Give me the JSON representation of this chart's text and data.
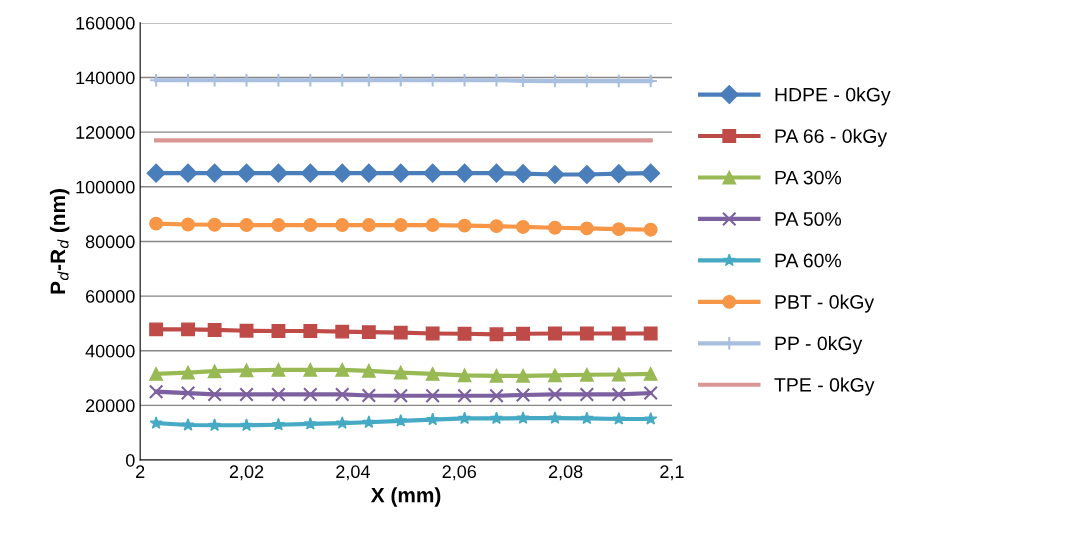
{
  "chart_data": {
    "type": "line",
    "xlabel": "X (mm)",
    "ylabel": "P$_{d}$-R$_{d}$ (nm)",
    "x": [
      2.003,
      2.009,
      2.014,
      2.02,
      2.026,
      2.032,
      2.038,
      2.043,
      2.049,
      2.055,
      2.061,
      2.067,
      2.072,
      2.078,
      2.084,
      2.09,
      2.096
    ],
    "xlim": [
      2,
      2.1
    ],
    "xticks": [
      {
        "value": 2,
        "label": "2"
      },
      {
        "value": 2.02,
        "label": "2,02"
      },
      {
        "value": 2.04,
        "label": "2,04"
      },
      {
        "value": 2.06,
        "label": "2,06"
      },
      {
        "value": 2.08,
        "label": "2,08"
      },
      {
        "value": 2.1,
        "label": "2,1"
      }
    ],
    "ylim": [
      0,
      160000
    ],
    "yticks": [
      0,
      20000,
      40000,
      60000,
      80000,
      100000,
      120000,
      140000,
      160000
    ],
    "grid": "y",
    "legend": "right",
    "series": [
      {
        "name": "HDPE - 0kGy",
        "color": "#4a7ebb",
        "marker": "diamond",
        "values": [
          105000,
          105000,
          105000,
          105000,
          105000,
          105000,
          105000,
          105000,
          105000,
          105000,
          105000,
          105000,
          104800,
          104500,
          104500,
          104800,
          105000
        ]
      },
      {
        "name": "PA 66 - 0kGy",
        "color": "#be4b48",
        "marker": "square",
        "values": [
          47800,
          47800,
          47600,
          47300,
          47200,
          47200,
          47000,
          46800,
          46600,
          46300,
          46200,
          46000,
          46200,
          46300,
          46300,
          46300,
          46300
        ]
      },
      {
        "name": "PA 30%",
        "color": "#98b954",
        "marker": "triangle",
        "values": [
          31500,
          32000,
          32500,
          32800,
          33000,
          33000,
          33000,
          32600,
          32000,
          31500,
          31000,
          30800,
          30800,
          31000,
          31200,
          31300,
          31500
        ]
      },
      {
        "name": "PA 50%",
        "color": "#7d60a0",
        "marker": "cross",
        "values": [
          25000,
          24500,
          24000,
          24000,
          24000,
          24000,
          24000,
          23600,
          23500,
          23500,
          23500,
          23500,
          23800,
          24000,
          24000,
          24000,
          24500
        ]
      },
      {
        "name": "PA 60%",
        "color": "#46aac5",
        "marker": "star",
        "values": [
          13500,
          12800,
          12700,
          12700,
          12900,
          13200,
          13500,
          13800,
          14300,
          14800,
          15200,
          15200,
          15300,
          15300,
          15200,
          15000,
          15000
        ]
      },
      {
        "name": "PBT - 0kGy",
        "color": "#f79646",
        "marker": "circle",
        "values": [
          86500,
          86200,
          86100,
          86000,
          86000,
          86000,
          86000,
          86000,
          86000,
          86000,
          85800,
          85600,
          85300,
          85000,
          84800,
          84500,
          84300
        ]
      },
      {
        "name": "PP - 0kGy",
        "color": "#a8bfe0",
        "marker": "plus",
        "values": [
          139000,
          139000,
          139000,
          139000,
          139000,
          139000,
          139000,
          139000,
          139000,
          139000,
          139000,
          139000,
          138800,
          138700,
          138700,
          138700,
          138700
        ]
      },
      {
        "name": "TPE - 0kGy",
        "color": "#d99694",
        "marker": "none",
        "values": [
          117000,
          117000,
          117000,
          117000,
          117000,
          117000,
          117000,
          117000,
          117000,
          117000,
          117000,
          117000,
          117000,
          117000,
          117000,
          117000,
          117000
        ]
      }
    ]
  }
}
